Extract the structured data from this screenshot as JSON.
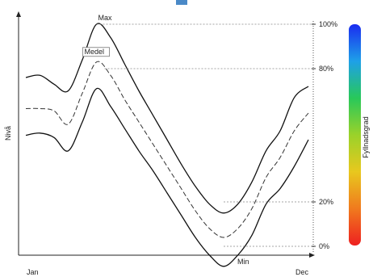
{
  "chart_data": {
    "type": "line",
    "xlabel": "",
    "ylabel": "Nivå",
    "x_tick_labels": [
      "Jan",
      "Dec"
    ],
    "right_scale_labels": [
      "100%",
      "80%",
      "20%",
      "0%"
    ],
    "right_scale_values": [
      100,
      80,
      20,
      0
    ],
    "colorbar_label": "Fyllnadsgrad",
    "colorbar_colors": [
      "#1a2cf0",
      "#1ea0e8",
      "#28c85a",
      "#9ad22a",
      "#e8c81e",
      "#f07a1e",
      "#ee2020"
    ],
    "x": [
      0,
      5,
      10,
      15,
      20,
      25,
      30,
      35,
      40,
      45,
      50,
      55,
      60,
      65,
      70,
      75,
      80,
      85,
      90,
      95,
      100
    ],
    "series": [
      {
        "name": "Max",
        "style": "solid",
        "values": [
          76,
          77,
          73,
          70,
          84,
          100,
          94,
          82,
          70,
          59,
          48,
          37,
          27,
          19,
          15,
          19,
          29,
          43,
          52,
          67,
          72
        ]
      },
      {
        "name": "Medel",
        "style": "dashed",
        "values": [
          62,
          62,
          61,
          55,
          69,
          83,
          77,
          66,
          56,
          46,
          36,
          26,
          16,
          8,
          4,
          8,
          17,
          31,
          40,
          52,
          60
        ]
      },
      {
        "name": "Min",
        "style": "solid",
        "values": [
          50,
          51,
          49,
          43,
          56,
          71,
          63,
          53,
          43,
          34,
          24,
          14,
          4,
          -4,
          -9,
          -4,
          5,
          19,
          26,
          36,
          48
        ]
      }
    ],
    "reference_lines": [
      {
        "label": "100%",
        "value": 100
      },
      {
        "label": "80%",
        "value": 80
      },
      {
        "label": "20%",
        "value": 20
      },
      {
        "label": "0%",
        "value": 0
      }
    ],
    "grid": false
  }
}
